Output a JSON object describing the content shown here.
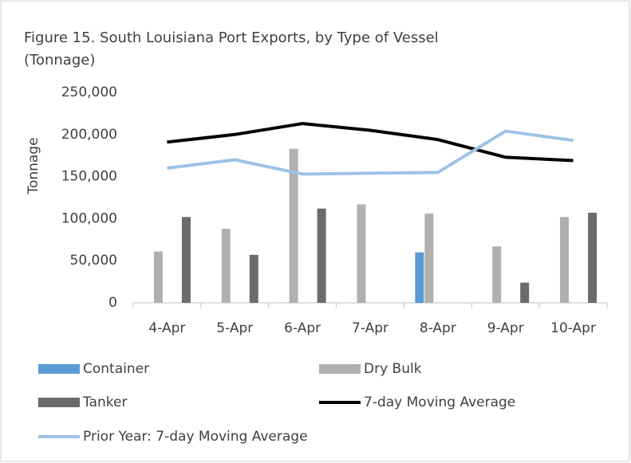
{
  "chart_data": {
    "type": "bar_line",
    "title": "Figure 15. South Louisiana Port Exports, by Type of Vessel (Tonnage)",
    "y_axis_label": "Tonnage",
    "categories": [
      "4-Apr",
      "5-Apr",
      "6-Apr",
      "7-Apr",
      "8-Apr",
      "9-Apr",
      "10-Apr"
    ],
    "ylim": [
      0,
      250000
    ],
    "yticks": [
      0,
      {
        "value": 50000,
        "label": "50,000"
      },
      {
        "value": 100000,
        "label": "100,000"
      },
      {
        "value": 150000,
        "label": "150,000"
      },
      {
        "value": 200000,
        "label": "200,000"
      },
      {
        "value": 250000,
        "label": "250,000"
      }
    ],
    "grid": false,
    "series": [
      {
        "name": "Container",
        "kind": "bar",
        "color": "#5b9bd5",
        "values": [
          0,
          0,
          0,
          0,
          60000,
          0,
          0
        ]
      },
      {
        "name": "Dry Bulk",
        "kind": "bar",
        "color": "#b1afaf",
        "values": [
          61000,
          88000,
          183000,
          117000,
          106000,
          67000,
          102000
        ]
      },
      {
        "name": "Tanker",
        "kind": "bar",
        "color": "#6b6b6b",
        "values": [
          102000,
          57000,
          112000,
          0,
          0,
          24000,
          107000
        ]
      },
      {
        "name": "7-day Moving Average",
        "kind": "line",
        "color": "#000000",
        "values": [
          191000,
          200000,
          213000,
          205000,
          194000,
          173000,
          169000
        ]
      },
      {
        "name": "Prior Year: 7-day Moving Average",
        "kind": "line",
        "color": "#9dc3e6",
        "values": [
          160000,
          170000,
          153000,
          154000,
          155000,
          204000,
          193000
        ]
      }
    ]
  }
}
